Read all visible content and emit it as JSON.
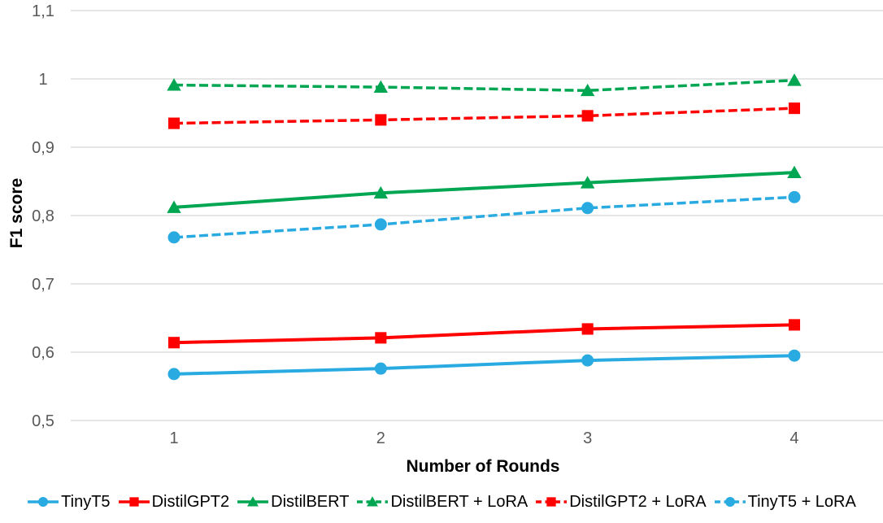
{
  "chart_data": {
    "type": "line",
    "title": "",
    "xlabel": "Number of Rounds",
    "ylabel": "F1 score",
    "x_categories": [
      "1",
      "2",
      "3",
      "4"
    ],
    "y_ticks": [
      {
        "value": 0.5,
        "label": "0,5"
      },
      {
        "value": 0.6,
        "label": "0,6"
      },
      {
        "value": 0.7,
        "label": "0,7"
      },
      {
        "value": 0.8,
        "label": "0,8"
      },
      {
        "value": 0.9,
        "label": "0,9"
      },
      {
        "value": 1.0,
        "label": "1"
      },
      {
        "value": 1.1,
        "label": "1,1"
      }
    ],
    "ylim": [
      0.5,
      1.1
    ],
    "grid": true,
    "legend_position": "bottom",
    "series": [
      {
        "name": "TinyT5",
        "color": "#29ABE2",
        "marker": "circle",
        "dash": "solid",
        "values": [
          0.568,
          0.576,
          0.588,
          0.595
        ]
      },
      {
        "name": "DistilGPT2",
        "color": "#FF0000",
        "marker": "square",
        "dash": "solid",
        "values": [
          0.614,
          0.621,
          0.634,
          0.64
        ]
      },
      {
        "name": "DistilBERT",
        "color": "#00A651",
        "marker": "triangle",
        "dash": "solid",
        "values": [
          0.812,
          0.833,
          0.848,
          0.863
        ]
      },
      {
        "name": "DistilBERT + LoRA",
        "color": "#00A651",
        "marker": "triangle",
        "dash": "dashed",
        "values": [
          0.991,
          0.988,
          0.983,
          0.998
        ]
      },
      {
        "name": "DistilGPT2 + LoRA",
        "color": "#FF0000",
        "marker": "square",
        "dash": "dashed",
        "values": [
          0.935,
          0.94,
          0.946,
          0.957
        ]
      },
      {
        "name": "TinyT5 + LoRA",
        "color": "#29ABE2",
        "marker": "circle",
        "dash": "dashed",
        "values": [
          0.768,
          0.787,
          0.811,
          0.827
        ]
      }
    ],
    "colors": {
      "gridline": "#D6D6D6",
      "tick_label": "#595959",
      "axis_label": "#000000",
      "background": "#FFFFFF"
    }
  }
}
